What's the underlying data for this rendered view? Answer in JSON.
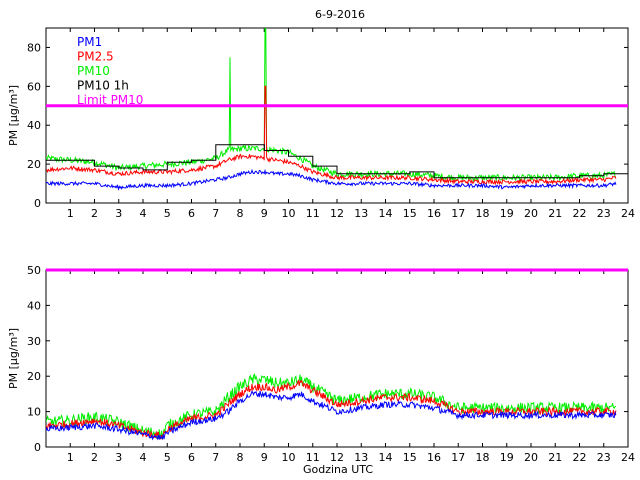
{
  "chart_data": [
    {
      "type": "line",
      "title": "6-9-2016",
      "xlabel": "",
      "ylabel": "PM [µg/m³]",
      "xlim": [
        0,
        24
      ],
      "ylim": [
        0,
        90
      ],
      "x_ticks": [
        "1",
        "2",
        "3",
        "4",
        "5",
        "6",
        "7",
        "8",
        "9",
        "10",
        "11",
        "12",
        "13",
        "14",
        "15",
        "16",
        "17",
        "18",
        "19",
        "20",
        "21",
        "22",
        "23",
        "24"
      ],
      "y_ticks": [
        0,
        20,
        40,
        60,
        80
      ],
      "legend_position": "top-left",
      "limit": {
        "name": "Limit PM10",
        "value": 50,
        "color": "#ff00ff"
      },
      "series": [
        {
          "name": "PM1",
          "color": "#0000ff",
          "x": [
            0,
            1,
            2,
            3,
            4,
            5,
            6,
            7,
            7.5,
            8,
            8.5,
            9,
            9.5,
            10,
            10.5,
            11,
            12,
            13,
            14,
            15,
            16,
            17,
            18,
            19,
            20,
            21,
            22,
            23,
            23.5
          ],
          "values": [
            10,
            10,
            10,
            8,
            9,
            9,
            10,
            12,
            13,
            15,
            16,
            16,
            15,
            15,
            14,
            12,
            10,
            10,
            10,
            10,
            9,
            9,
            9,
            8,
            9,
            9,
            9,
            9,
            10
          ]
        },
        {
          "name": "PM2.5",
          "color": "#ff0000",
          "x": [
            0,
            1,
            2,
            3,
            4,
            5,
            6,
            7,
            7.5,
            8,
            8.5,
            9,
            9.5,
            10,
            10.5,
            11,
            12,
            13,
            14,
            15,
            16,
            17,
            18,
            19,
            20,
            21,
            22,
            23,
            23.5
          ],
          "values": [
            17,
            18,
            17,
            15,
            16,
            16,
            17,
            19,
            22,
            24,
            24,
            23,
            22,
            21,
            19,
            16,
            13,
            13,
            13,
            13,
            12,
            11,
            11,
            11,
            11,
            11,
            12,
            12,
            13
          ]
        },
        {
          "name": "PM10",
          "color": "#00ee00",
          "x": [
            0,
            1,
            2,
            3,
            4,
            5,
            6,
            7,
            7.5,
            8,
            8.5,
            9,
            9.5,
            10,
            10.5,
            11,
            12,
            13,
            14,
            15,
            16,
            17,
            18,
            19,
            20,
            21,
            22,
            23,
            23.5
          ],
          "values": [
            23,
            22,
            21,
            18,
            19,
            20,
            21,
            23,
            27,
            28,
            28,
            28,
            27,
            26,
            23,
            19,
            15,
            15,
            15,
            15,
            14,
            13,
            13,
            13,
            13,
            13,
            14,
            14,
            15
          ]
        },
        {
          "name": "PM10 1h",
          "color": "#000000",
          "step": true,
          "x": [
            0,
            1,
            2,
            3,
            4,
            5,
            6,
            7,
            8,
            9,
            10,
            11,
            12,
            13,
            14,
            15,
            16,
            17,
            18,
            19,
            20,
            21,
            22,
            23,
            24
          ],
          "values": [
            22,
            22,
            19,
            18,
            17,
            21,
            22,
            30,
            30,
            27,
            24,
            19,
            15,
            15,
            15,
            16,
            13,
            13,
            13,
            13,
            13,
            13,
            14,
            15,
            15
          ]
        }
      ],
      "spikes": [
        {
          "series": "PM10",
          "x": 7.6,
          "value": 75
        },
        {
          "series": "PM10",
          "x": 9.05,
          "value": 90
        },
        {
          "series": "PM2.5",
          "x": 9.05,
          "value": 60
        }
      ]
    },
    {
      "type": "line",
      "title": "",
      "xlabel": "Godzina UTC",
      "ylabel": "PM [µg/m³]",
      "xlim": [
        0,
        24
      ],
      "ylim": [
        0,
        50
      ],
      "x_ticks": [
        "1",
        "2",
        "3",
        "4",
        "5",
        "6",
        "7",
        "8",
        "9",
        "10",
        "11",
        "12",
        "13",
        "14",
        "15",
        "16",
        "17",
        "18",
        "19",
        "20",
        "21",
        "22",
        "23",
        "24"
      ],
      "y_ticks": [
        0,
        10,
        20,
        30,
        40,
        50
      ],
      "limit": {
        "name": "Limit PM10",
        "value": 50,
        "color": "#ff00ff"
      },
      "series": [
        {
          "name": "PM1",
          "color": "#0000ff",
          "x": [
            0,
            1,
            2,
            3,
            4,
            4.5,
            4.8,
            5,
            6,
            7,
            7.5,
            8,
            8.5,
            9,
            9.5,
            10,
            10.5,
            11,
            12,
            13,
            14,
            15,
            16,
            17,
            18,
            19,
            20,
            21,
            22,
            23,
            23.5
          ],
          "values": [
            5,
            5.5,
            6,
            5,
            3.5,
            3,
            2.5,
            4,
            7,
            8,
            10,
            13,
            15,
            15,
            14,
            14,
            15,
            13,
            10,
            11,
            12,
            12,
            11,
            9,
            9,
            9,
            9,
            9,
            9,
            9,
            9
          ]
        },
        {
          "name": "PM2.5",
          "color": "#ff0000",
          "x": [
            0,
            1,
            2,
            3,
            4,
            4.5,
            4.8,
            5,
            6,
            7,
            7.5,
            8,
            8.5,
            9,
            9.5,
            10,
            10.5,
            11,
            12,
            13,
            14,
            15,
            16,
            17,
            18,
            19,
            20,
            21,
            22,
            23,
            23.5
          ],
          "values": [
            6,
            6.5,
            7.5,
            6,
            4,
            3.5,
            3,
            5,
            8,
            9,
            12,
            15,
            17,
            17,
            16,
            17,
            18,
            16,
            12,
            13,
            14,
            14,
            13,
            10,
            10,
            10,
            10,
            10,
            10,
            10,
            10
          ]
        },
        {
          "name": "PM10",
          "color": "#00ee00",
          "x": [
            0,
            1,
            2,
            3,
            4,
            4.5,
            4.8,
            5,
            6,
            7,
            7.5,
            8,
            8.5,
            9,
            9.5,
            10,
            10.5,
            11,
            12,
            13,
            14,
            15,
            16,
            17,
            18,
            19,
            20,
            21,
            22,
            23,
            23.5
          ],
          "values": [
            7,
            7.5,
            8.5,
            7,
            4.5,
            4,
            3.5,
            6,
            9,
            10,
            14,
            17,
            19,
            19,
            18,
            18,
            19,
            17,
            13,
            14,
            15,
            15,
            14,
            11,
            11,
            11,
            11,
            11,
            11,
            11,
            11
          ]
        }
      ]
    }
  ]
}
